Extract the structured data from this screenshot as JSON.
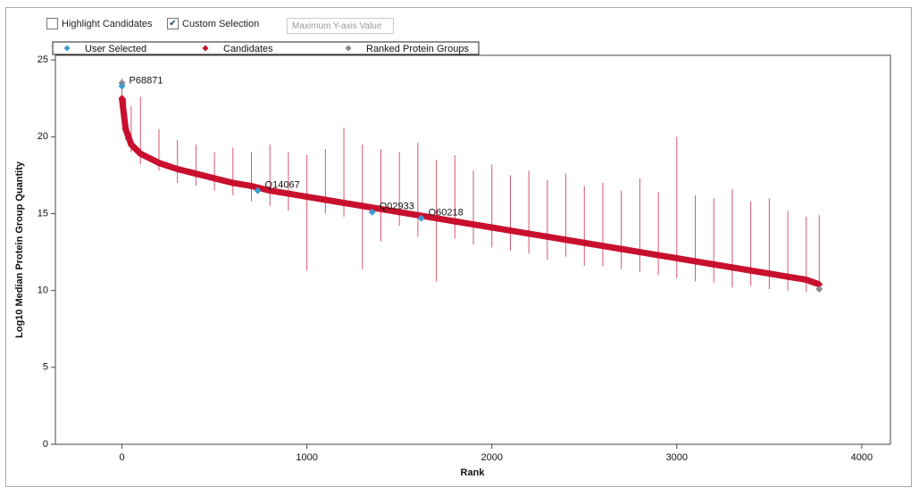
{
  "controls": {
    "highlight_candidates": {
      "label": "Highlight Candidates",
      "checked": false
    },
    "custom_selection": {
      "label": "Custom Selection",
      "checked": true
    },
    "max_y_input": {
      "placeholder": "Maximum Y-axis Value"
    }
  },
  "chart_data": {
    "type": "scatter",
    "x_label": "Rank",
    "y_label": "Log10 Median Protein Group Quantity",
    "xlim": [
      -360,
      4155
    ],
    "ylim": [
      0,
      25.3
    ],
    "xticks": [
      0,
      1000,
      2000,
      3000,
      4000
    ],
    "yticks": [
      0,
      5,
      10,
      15,
      20,
      25
    ],
    "legend_position": "top",
    "series": [
      {
        "name": "User Selected",
        "color": "#3d9bd3",
        "x": [
          0,
          734,
          1353,
          1618
        ],
        "values": [
          23.3,
          16.5,
          15.1,
          14.7
        ],
        "labels": [
          "P68871",
          "Q14067",
          "Q02933",
          "O60218"
        ]
      },
      {
        "name": "Candidates",
        "color": "#c8102e",
        "x": [
          0,
          20,
          50,
          100,
          200,
          300,
          400,
          500,
          600,
          700,
          800,
          900,
          1000,
          1100,
          1200,
          1300,
          1400,
          1500,
          1600,
          1700,
          1800,
          1900,
          2000,
          2100,
          2200,
          2300,
          2400,
          2500,
          2600,
          2700,
          2800,
          2900,
          3000,
          3100,
          3200,
          3300,
          3400,
          3500,
          3600,
          3700,
          3770
        ],
        "values": [
          22.5,
          20.5,
          19.5,
          18.9,
          18.3,
          17.9,
          17.6,
          17.3,
          17.0,
          16.8,
          16.5,
          16.3,
          16.1,
          15.9,
          15.7,
          15.5,
          15.3,
          15.1,
          14.9,
          14.7,
          14.5,
          14.3,
          14.1,
          13.9,
          13.7,
          13.5,
          13.3,
          13.1,
          12.9,
          12.7,
          12.5,
          12.3,
          12.1,
          11.9,
          11.7,
          11.5,
          11.3,
          11.1,
          10.9,
          10.7,
          10.4
        ],
        "highs": [
          23.8,
          22.5,
          22.0,
          22.6,
          20.5,
          19.8,
          19.5,
          19.0,
          19.3,
          19.0,
          19.5,
          19.0,
          18.8,
          19.2,
          20.6,
          19.5,
          19.2,
          19.0,
          19.6,
          18.5,
          18.8,
          17.8,
          18.2,
          17.5,
          17.8,
          17.2,
          17.6,
          16.8,
          17.0,
          16.5,
          17.3,
          16.4,
          20.0,
          16.2,
          16.0,
          16.6,
          15.8,
          16.0,
          15.2,
          14.8,
          14.9
        ],
        "lows": [
          22.0,
          19.8,
          19.0,
          18.2,
          17.8,
          17.0,
          16.8,
          16.5,
          16.2,
          15.8,
          15.5,
          15.2,
          11.3,
          15.0,
          14.8,
          11.4,
          13.2,
          14.2,
          13.5,
          10.6,
          13.4,
          13.0,
          12.8,
          12.6,
          12.4,
          12.0,
          12.2,
          11.6,
          11.6,
          11.4,
          11.2,
          11.0,
          10.8,
          10.6,
          10.5,
          10.2,
          10.3,
          10.1,
          10.0,
          9.9,
          10.0
        ]
      },
      {
        "name": "Ranked Protein Groups",
        "color": "#8a8a8a",
        "x": [
          0,
          3770
        ],
        "values": [
          23.5,
          10.1
        ]
      }
    ]
  }
}
